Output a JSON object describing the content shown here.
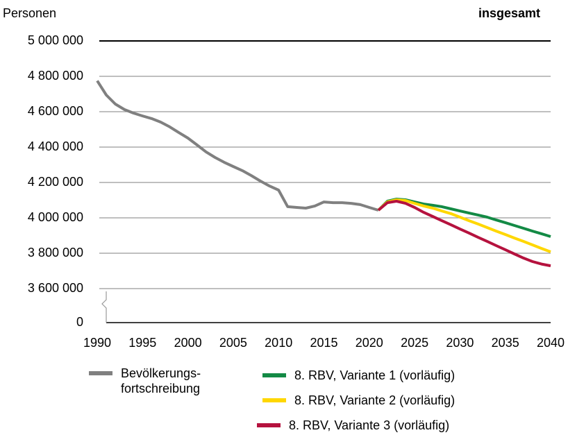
{
  "chart_data": {
    "type": "line",
    "title": "insgesamt",
    "y_label": "Personen",
    "x": [
      1990,
      1991,
      1992,
      1993,
      1994,
      1995,
      1996,
      1997,
      1998,
      1999,
      2000,
      2001,
      2002,
      2003,
      2004,
      2005,
      2006,
      2007,
      2008,
      2009,
      2010,
      2011,
      2012,
      2013,
      2014,
      2015,
      2016,
      2017,
      2018,
      2019,
      2020,
      2021,
      2022,
      2023,
      2024,
      2025,
      2026,
      2027,
      2028,
      2029,
      2030,
      2031,
      2032,
      2033,
      2034,
      2035,
      2036,
      2037,
      2038,
      2039,
      2040
    ],
    "series": [
      {
        "name": "Bevölkerungs-\nfortschreibung",
        "color": "#808080",
        "values": [
          4775000,
          4694000,
          4643000,
          4612000,
          4592000,
          4576000,
          4561000,
          4541000,
          4514000,
          4482000,
          4451000,
          4412000,
          4373000,
          4341000,
          4314000,
          4290000,
          4267000,
          4239000,
          4208000,
          4180000,
          4157000,
          4063000,
          4059000,
          4055000,
          4067000,
          4090000,
          4086000,
          4086000,
          4082000,
          4075000,
          4059000,
          4043000,
          null,
          null,
          null,
          null,
          null,
          null,
          null,
          null,
          null,
          null,
          null,
          null,
          null,
          null,
          null,
          null,
          null,
          null,
          null
        ]
      },
      {
        "name": "8. RBV, Variante 1 (vorläufig)",
        "color": "#138a45",
        "values": [
          null,
          null,
          null,
          null,
          null,
          null,
          null,
          null,
          null,
          null,
          null,
          null,
          null,
          null,
          null,
          null,
          null,
          null,
          null,
          null,
          null,
          null,
          null,
          null,
          null,
          null,
          null,
          null,
          null,
          null,
          null,
          4043000,
          4094000,
          4106000,
          4102000,
          4090000,
          4078000,
          4071000,
          4063000,
          4051000,
          4039000,
          4027000,
          4016000,
          4004000,
          3988000,
          3973000,
          3957000,
          3941000,
          3925000,
          3910000,
          3894000
        ]
      },
      {
        "name": "8. RBV, Variante 2 (vorläufig)",
        "color": "#ffd700",
        "values": [
          null,
          null,
          null,
          null,
          null,
          null,
          null,
          null,
          null,
          null,
          null,
          null,
          null,
          null,
          null,
          null,
          null,
          null,
          null,
          null,
          null,
          null,
          null,
          null,
          null,
          null,
          null,
          null,
          null,
          null,
          null,
          4043000,
          4090000,
          4102000,
          4098000,
          4082000,
          4067000,
          4055000,
          4039000,
          4024000,
          4004000,
          3984000,
          3965000,
          3945000,
          3925000,
          3906000,
          3886000,
          3867000,
          3847000,
          3827000,
          3808000
        ]
      },
      {
        "name": "8. RBV, Variante 3 (vorläufig)",
        "color": "#b5123e",
        "values": [
          null,
          null,
          null,
          null,
          null,
          null,
          null,
          null,
          null,
          null,
          null,
          null,
          null,
          null,
          null,
          null,
          null,
          null,
          null,
          null,
          null,
          null,
          null,
          null,
          null,
          null,
          null,
          null,
          null,
          null,
          null,
          4043000,
          4086000,
          4094000,
          4082000,
          4059000,
          4031000,
          4008000,
          3984000,
          3961000,
          3937000,
          3914000,
          3890000,
          3867000,
          3843000,
          3820000,
          3796000,
          3773000,
          3753000,
          3739000,
          3729000
        ]
      }
    ],
    "xlim": [
      1990,
      2040
    ],
    "xticks": [
      1990,
      1995,
      2000,
      2005,
      2010,
      2015,
      2020,
      2025,
      2030,
      2035,
      2040
    ],
    "ylim": [
      3600000,
      5000000
    ],
    "yticks": [
      {
        "value": 0,
        "label": "0"
      },
      {
        "value": 3600000,
        "label": "3 600 000"
      },
      {
        "value": 3800000,
        "label": "3 800 000"
      },
      {
        "value": 4000000,
        "label": "4 000 000"
      },
      {
        "value": 4200000,
        "label": "4 200 000"
      },
      {
        "value": 4400000,
        "label": "4 400 000"
      },
      {
        "value": 4600000,
        "label": "4 600 000"
      },
      {
        "value": 4800000,
        "label": "4 800 000"
      },
      {
        "value": 5000000,
        "label": "5 000 000"
      }
    ],
    "axis_break": true,
    "grid": true
  }
}
